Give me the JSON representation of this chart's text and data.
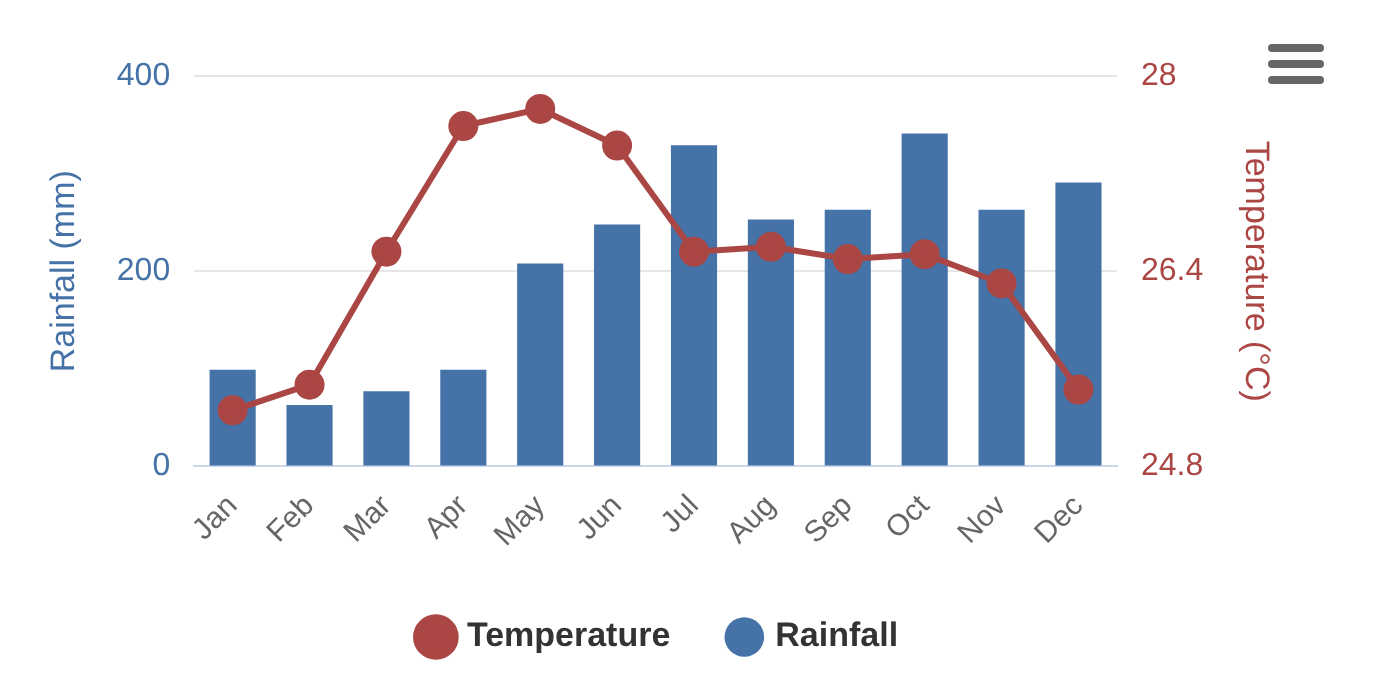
{
  "chart_data": {
    "type": "bar",
    "categories": [
      "Jan",
      "Feb",
      "Mar",
      "Apr",
      "May",
      "Jun",
      "Jul",
      "Aug",
      "Sep",
      "Oct",
      "Nov",
      "Dec"
    ],
    "ylabel": "Rainfall (mm)",
    "y2label": "Temperature (°C)",
    "series": [
      {
        "name": "Temperature",
        "type": "line",
        "axis": "y2",
        "color": "#aa4643",
        "marker": "circle",
        "values": [
          25.26,
          25.47,
          26.56,
          27.59,
          27.73,
          27.43,
          26.56,
          26.6,
          26.5,
          26.54,
          26.3,
          25.43
        ]
      },
      {
        "name": "Rainfall",
        "color": "#4572a7",
        "values": [
          99,
          63,
          77,
          99,
          208,
          248,
          329,
          253,
          263,
          341,
          263,
          291
        ]
      }
    ],
    "ylim": [
      0,
      400
    ],
    "yticks": [
      0,
      200,
      400
    ],
    "y2lim": [
      24.8,
      28
    ],
    "y2ticks": [
      24.8,
      26.4,
      28
    ],
    "grid": "y",
    "legend": "bottom"
  }
}
